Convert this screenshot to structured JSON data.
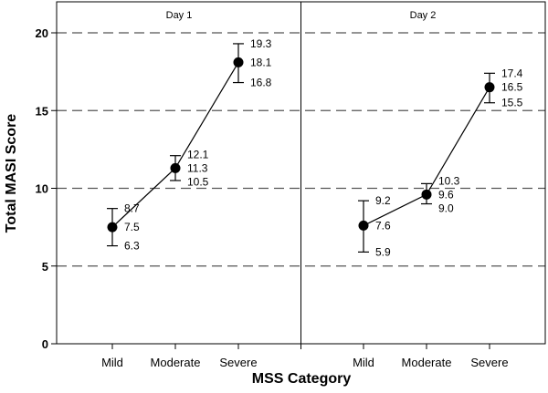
{
  "chart_data": {
    "type": "line",
    "xlabel": "MSS Category",
    "ylabel": "Total MASI Score",
    "ylim": [
      0,
      22
    ],
    "yticks": [
      0,
      5,
      10,
      15,
      20
    ],
    "grid": "dashed horizontal at 5, 10, 15, 20",
    "categories": [
      "Mild",
      "Moderate",
      "Severe"
    ],
    "panels": [
      {
        "title": "Day 1",
        "mean": [
          7.5,
          11.3,
          18.1
        ],
        "upper": [
          8.7,
          12.1,
          19.3
        ],
        "lower": [
          6.3,
          10.5,
          16.8
        ],
        "mean_labels": [
          "7.5",
          "11.3",
          "18.1"
        ],
        "upper_labels": [
          "8.7",
          "12.1",
          "19.3"
        ],
        "lower_labels": [
          "6.3",
          "10.5",
          "16.8"
        ]
      },
      {
        "title": "Day 2",
        "mean": [
          7.6,
          9.6,
          16.5
        ],
        "upper": [
          9.2,
          10.3,
          17.4
        ],
        "lower": [
          5.9,
          9.0,
          15.5
        ],
        "mean_labels": [
          "7.6",
          "9.6",
          "16.5"
        ],
        "upper_labels": [
          "9.2",
          "10.3",
          "17.4"
        ],
        "lower_labels": [
          "5.9",
          "9.0",
          "15.5"
        ]
      }
    ],
    "colors": {
      "marker": "#000000",
      "grid": "#555555"
    }
  }
}
